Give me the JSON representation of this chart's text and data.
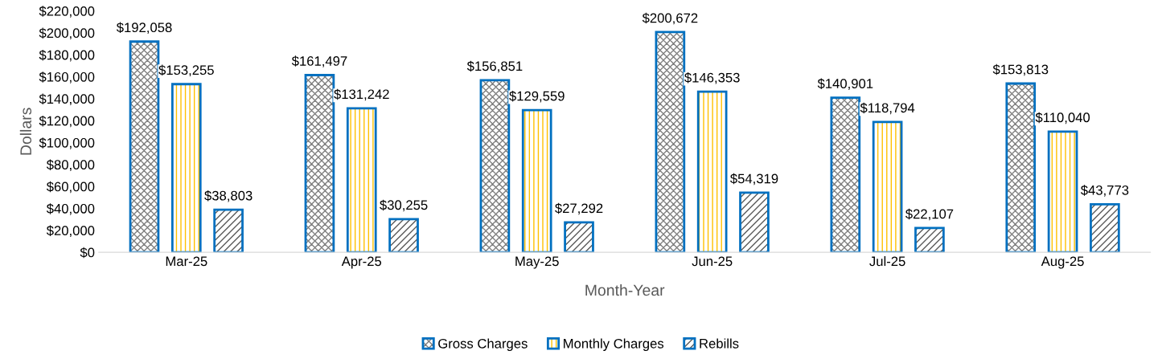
{
  "chart_data": {
    "type": "bar",
    "xlabel": "Month-Year",
    "ylabel": "Dollars",
    "categories": [
      "Mar-25",
      "Apr-25",
      "May-25",
      "Jun-25",
      "Jul-25",
      "Aug-25"
    ],
    "series": [
      {
        "name": "Gross Charges",
        "color": "#0070c0",
        "values": [
          192058,
          161497,
          156851,
          200672,
          140901,
          153813
        ],
        "value_labels": [
          "$192,058",
          "$161,497",
          "$156,851",
          "$200,672",
          "$140,901",
          "$153,813"
        ]
      },
      {
        "name": "Monthly Charges",
        "color": "#0070c0",
        "values": [
          153255,
          131242,
          129559,
          146353,
          118794,
          110040
        ],
        "value_labels": [
          "$153,255",
          "$131,242",
          "$129,559",
          "$146,353",
          "$118,794",
          "$110,040"
        ]
      },
      {
        "name": "Rebills",
        "color": "#0070c0",
        "values": [
          38803,
          30255,
          27292,
          54319,
          22107,
          43773
        ],
        "value_labels": [
          "$38,803",
          "$30,255",
          "$27,292",
          "$54,319",
          "$22,107",
          "$43,773"
        ]
      }
    ],
    "ylim": [
      0,
      220000
    ],
    "yticks": [
      {
        "value": 0,
        "label": "$0"
      },
      {
        "value": 20000,
        "label": "$20,000"
      },
      {
        "value": 40000,
        "label": "$40,000"
      },
      {
        "value": 60000,
        "label": "$60,000"
      },
      {
        "value": 80000,
        "label": "$80,000"
      },
      {
        "value": 100000,
        "label": "$100,000"
      },
      {
        "value": 120000,
        "label": "$120,000"
      },
      {
        "value": 140000,
        "label": "$140,000"
      },
      {
        "value": 160000,
        "label": "$160,000"
      },
      {
        "value": 180000,
        "label": "$180,000"
      },
      {
        "value": 200000,
        "label": "$200,000"
      },
      {
        "value": 220000,
        "label": "$220,000"
      }
    ],
    "grid": false,
    "legend": "bottom"
  }
}
